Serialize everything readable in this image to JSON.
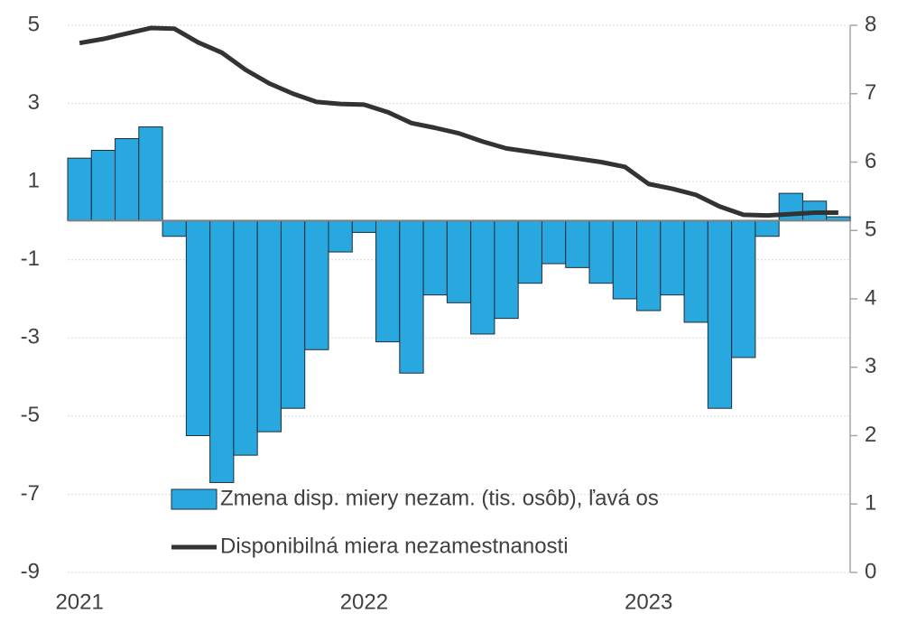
{
  "chart_data": {
    "type": "bar_line",
    "categories": [
      "2021",
      null,
      null,
      null,
      null,
      null,
      null,
      null,
      null,
      null,
      null,
      null,
      "2022",
      null,
      null,
      null,
      null,
      null,
      null,
      null,
      null,
      null,
      null,
      null,
      "2023",
      null,
      null,
      null,
      null,
      null,
      null,
      null,
      null
    ],
    "series": [
      {
        "name": "Zmena disp. miery nezam. (tis. osôb), ľavá os",
        "type": "bar",
        "color": "#29a8e0",
        "values": [
          1.6,
          1.8,
          2.1,
          2.4,
          -0.4,
          -5.5,
          -6.7,
          -6.0,
          -5.4,
          -4.8,
          -3.3,
          -0.8,
          -0.3,
          -3.1,
          -3.9,
          -1.9,
          -2.1,
          -2.9,
          -2.5,
          -1.6,
          -1.1,
          -1.2,
          -1.6,
          -2.0,
          -2.3,
          -1.9,
          -2.6,
          -4.8,
          -3.5,
          -0.4,
          0.7,
          0.5,
          0.1
        ]
      },
      {
        "name": "Disponibilná miera nezamestnanosti",
        "type": "line",
        "color": "#333333",
        "axis": "y2",
        "values": [
          7.74,
          7.8,
          7.88,
          7.96,
          7.95,
          7.75,
          7.6,
          7.35,
          7.15,
          7.0,
          6.88,
          6.85,
          6.84,
          6.73,
          6.57,
          6.5,
          6.42,
          6.3,
          6.2,
          6.15,
          6.1,
          6.05,
          6.0,
          5.93,
          5.68,
          5.61,
          5.52,
          5.35,
          5.23,
          5.22,
          5.24,
          5.26,
          5.26
        ]
      }
    ],
    "ylim": [
      -9,
      5
    ],
    "yticks": [
      5,
      3,
      1,
      -1,
      -3,
      -5,
      -7,
      -9
    ],
    "y2lim": [
      0,
      8
    ],
    "y2ticks": [
      8,
      7,
      6,
      5,
      4,
      3,
      2,
      1,
      0
    ],
    "grid": true
  }
}
